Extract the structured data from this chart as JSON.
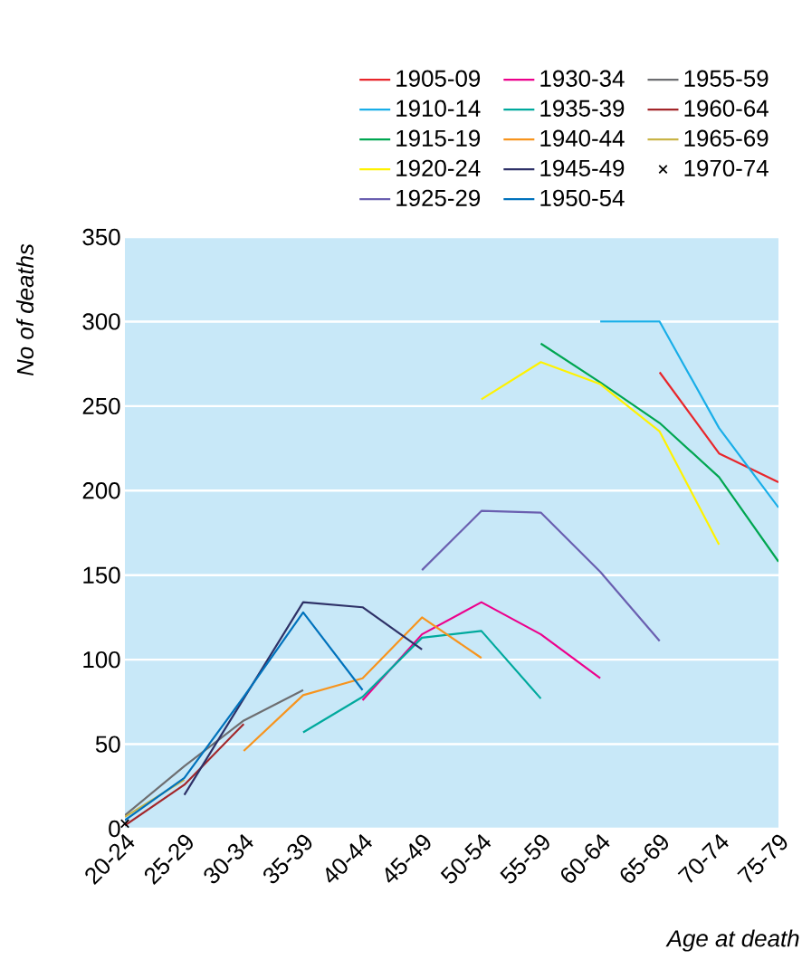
{
  "chart_data": {
    "type": "line",
    "xlabel": "Age at death",
    "ylabel": "No of deaths",
    "categories": [
      "20-24",
      "25-29",
      "30-34",
      "35-39",
      "40-44",
      "45-49",
      "50-54",
      "55-59",
      "60-64",
      "65-69",
      "70-74",
      "75-79"
    ],
    "ylim": [
      0,
      350
    ],
    "yticks": [
      0,
      50,
      100,
      150,
      200,
      250,
      300,
      350
    ],
    "grid": "y",
    "legend": "top right",
    "line_style": "solid",
    "marker": "none",
    "series": [
      {
        "name": "1905-09",
        "color": "#e8262b",
        "values": [
          null,
          null,
          null,
          null,
          null,
          null,
          null,
          null,
          null,
          270,
          222,
          205
        ]
      },
      {
        "name": "1910-14",
        "color": "#19aee8",
        "values": [
          null,
          null,
          null,
          null,
          null,
          null,
          null,
          null,
          300,
          300,
          237,
          190
        ]
      },
      {
        "name": "1915-19",
        "color": "#00a651",
        "values": [
          null,
          null,
          null,
          null,
          null,
          null,
          null,
          287,
          264,
          240,
          208,
          158
        ]
      },
      {
        "name": "1920-24",
        "color": "#fff200",
        "values": [
          null,
          null,
          null,
          null,
          null,
          null,
          254,
          276,
          263,
          235,
          168,
          null
        ]
      },
      {
        "name": "1925-29",
        "color": "#6a5fb0",
        "values": [
          null,
          null,
          null,
          null,
          null,
          153,
          188,
          187,
          152,
          111,
          null,
          null
        ]
      },
      {
        "name": "1930-34",
        "color": "#ec008c",
        "values": [
          null,
          null,
          null,
          null,
          76,
          115,
          134,
          115,
          89,
          null,
          null,
          null
        ]
      },
      {
        "name": "1935-39",
        "color": "#00a99d",
        "values": [
          null,
          null,
          null,
          57,
          78,
          113,
          117,
          77,
          null,
          null,
          null,
          null
        ]
      },
      {
        "name": "1940-44",
        "color": "#f7941d",
        "values": [
          null,
          null,
          46,
          79,
          89,
          125,
          101,
          null,
          null,
          null,
          null,
          null
        ]
      },
      {
        "name": "1945-49",
        "color": "#2e3167",
        "values": [
          null,
          20,
          77,
          134,
          131,
          106,
          null,
          null,
          null,
          null,
          null,
          null
        ]
      },
      {
        "name": "1950-54",
        "color": "#0072bc",
        "values": [
          5,
          30,
          78,
          128,
          82,
          null,
          null,
          null,
          null,
          null,
          null,
          null
        ]
      },
      {
        "name": "1955-59",
        "color": "#6d6e71",
        "values": [
          8,
          37,
          64,
          82,
          null,
          null,
          null,
          null,
          null,
          null,
          null,
          null
        ]
      },
      {
        "name": "1960-64",
        "color": "#a3262a",
        "values": [
          2,
          26,
          62,
          null,
          null,
          null,
          null,
          null,
          null,
          null,
          null,
          null
        ]
      },
      {
        "name": "1965-69",
        "color": "#c9b447",
        "values": [
          7,
          29,
          null,
          null,
          null,
          null,
          null,
          null,
          null,
          null,
          null,
          null
        ]
      },
      {
        "name": "1970-74",
        "color": "#000000",
        "type": "scatter",
        "marker": "cross",
        "values": [
          3,
          null,
          null,
          null,
          null,
          null,
          null,
          null,
          null,
          null,
          null,
          null
        ]
      }
    ]
  }
}
